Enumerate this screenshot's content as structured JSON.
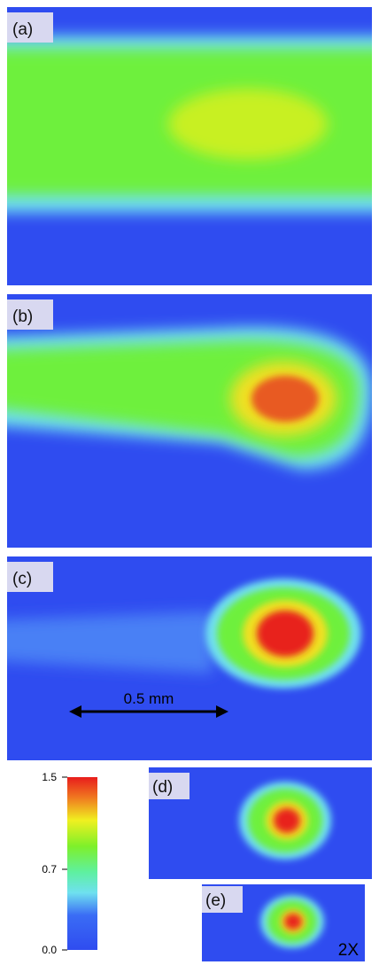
{
  "panels": [
    {
      "label": "(a)"
    },
    {
      "label": "(b)"
    },
    {
      "label": "(c)"
    },
    {
      "label": "(d)"
    },
    {
      "label": "(e)"
    }
  ],
  "scale_bar": {
    "label": "0.5 mm"
  },
  "magnification": "2X",
  "colorbar": {
    "range": [
      0,
      1.5
    ],
    "ticks": [
      {
        "value": 0,
        "label": "0.0"
      },
      0.7,
      1.5
    ]
  }
}
